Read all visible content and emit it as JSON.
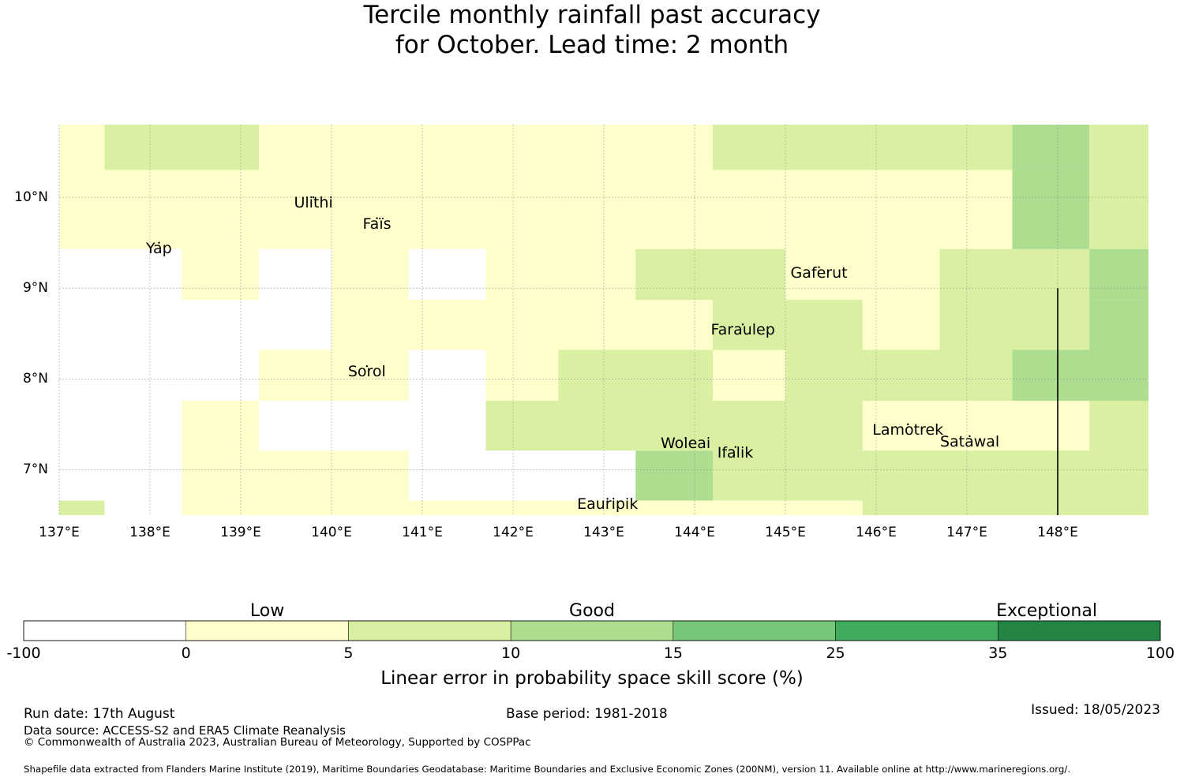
{
  "title": {
    "line1": "Tercile monthly rainfall past accuracy",
    "line2": "for October. Lead time: 2 month"
  },
  "map": {
    "x_ticks": [
      "137°E",
      "138°E",
      "139°E",
      "140°E",
      "141°E",
      "142°E",
      "143°E",
      "144°E",
      "145°E",
      "146°E",
      "147°E",
      "148°E"
    ],
    "y_ticks": [
      "10°N",
      "9°N",
      "8°N",
      "7°N"
    ],
    "places": [
      {
        "name": "Ulithi",
        "lon": 139.8,
        "lat": 10.0
      },
      {
        "name": "Faïs",
        "lon": 140.5,
        "lat": 9.77
      },
      {
        "name": "Yap",
        "lon": 138.1,
        "lat": 9.5
      },
      {
        "name": "Gaferut",
        "lon": 145.37,
        "lat": 9.23
      },
      {
        "name": "Faraulep",
        "lon": 144.53,
        "lat": 8.6
      },
      {
        "name": "Sorol",
        "lon": 140.39,
        "lat": 8.14
      },
      {
        "name": "Woleai",
        "lon": 143.9,
        "lat": 7.35
      },
      {
        "name": "Ifalik",
        "lon": 144.45,
        "lat": 7.25
      },
      {
        "name": "Lamotrek",
        "lon": 146.35,
        "lat": 7.5
      },
      {
        "name": "Satawal",
        "lon": 147.03,
        "lat": 7.37
      },
      {
        "name": "Eauripik",
        "lon": 143.04,
        "lat": 6.68
      }
    ],
    "boundary_line": {
      "lon": 148.0,
      "lat_from": 6.5,
      "lat_to": 9.0
    }
  },
  "chart_data": {
    "type": "heatmap",
    "value_units": "Linear error in probability space skill score (%)",
    "extent": {
      "lon": [
        137.0,
        149.0
      ],
      "lat": [
        6.5,
        10.8
      ]
    },
    "cells_lon_lat_category": [
      [
        137.0,
        10.55,
        1
      ],
      [
        137.5,
        10.55,
        2
      ],
      [
        139.2,
        10.55,
        1
      ],
      [
        144.2,
        10.55,
        2
      ],
      [
        147.5,
        10.55,
        3
      ],
      [
        148.35,
        10.55,
        2
      ],
      [
        137.0,
        10.0,
        1
      ],
      [
        147.5,
        10.0,
        3
      ],
      [
        148.35,
        10.0,
        2
      ],
      [
        137.0,
        9.4,
        0
      ],
      [
        138.35,
        9.4,
        1
      ],
      [
        139.2,
        9.4,
        0
      ],
      [
        140.0,
        9.4,
        1
      ],
      [
        140.85,
        9.4,
        0
      ],
      [
        141.7,
        9.4,
        1
      ],
      [
        143.35,
        9.4,
        2
      ],
      [
        145.0,
        9.4,
        1
      ],
      [
        146.7,
        9.4,
        2
      ],
      [
        147.5,
        9.4,
        2
      ],
      [
        148.35,
        9.4,
        3
      ],
      [
        137.0,
        8.6,
        0
      ],
      [
        140.0,
        8.6,
        1
      ],
      [
        144.2,
        8.6,
        2
      ],
      [
        145.85,
        8.6,
        1
      ],
      [
        146.7,
        8.6,
        2
      ],
      [
        148.35,
        8.6,
        3
      ],
      [
        137.0,
        8.05,
        0
      ],
      [
        139.2,
        8.05,
        1
      ],
      [
        140.85,
        8.05,
        0
      ],
      [
        141.7,
        8.05,
        1
      ],
      [
        142.5,
        8.05,
        2
      ],
      [
        144.2,
        8.05,
        1
      ],
      [
        145.0,
        8.05,
        2
      ],
      [
        147.5,
        8.05,
        3
      ],
      [
        137.0,
        7.5,
        0
      ],
      [
        138.35,
        7.5,
        1
      ],
      [
        139.2,
        7.5,
        0
      ],
      [
        141.7,
        7.5,
        2
      ],
      [
        145.85,
        7.5,
        1
      ],
      [
        147.5,
        7.5,
        1
      ],
      [
        148.35,
        7.5,
        2
      ],
      [
        137.0,
        6.95,
        0
      ],
      [
        138.35,
        6.95,
        1
      ],
      [
        140.85,
        6.95,
        0
      ],
      [
        143.35,
        6.95,
        3
      ],
      [
        144.2,
        6.95,
        2
      ],
      [
        137.0,
        6.65,
        2
      ],
      [
        137.5,
        6.65,
        0
      ],
      [
        138.35,
        6.65,
        1
      ],
      [
        145.0,
        6.65,
        1
      ],
      [
        145.85,
        6.65,
        2
      ]
    ],
    "colorbar": {
      "ticks": [
        "-100",
        "0",
        "5",
        "10",
        "15",
        "25",
        "35",
        "100"
      ],
      "colors": [
        "#ffffff",
        "#ffffcc",
        "#d9f0a3",
        "#addd8e",
        "#78c679",
        "#41ab5d",
        "#238443"
      ],
      "categories": [
        "Low",
        "Good",
        "Exceptional"
      ],
      "label": "Linear error in probability space skill score (%)"
    }
  },
  "footer": {
    "run_date": "Run date: 17th August",
    "base_period": "Base period: 1981-2018",
    "issued": "Issued: 18/05/2023",
    "data_source": "Data source: ACCESS-S2 and ERA5 Climate Reanalysis",
    "copyright": "© Commonwealth of Australia 2023, Australian Bureau of Meteorology, Supported by COSPPac",
    "shapefile": "Shapefile data extracted from Flanders Marine Institute (2019), Maritime Boundaries Geodatabase: Maritime Boundaries and Exclusive Economic Zones (200NM), version 11. Available online at http://www.marineregions.org/."
  }
}
